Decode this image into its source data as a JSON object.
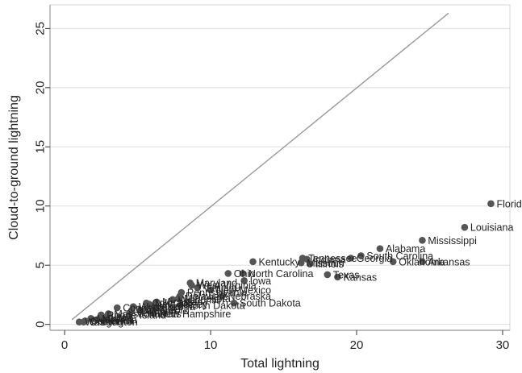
{
  "chart_data": {
    "type": "scatter",
    "title": "",
    "xlabel": "Total lightning",
    "ylabel": "Cloud-to-ground lightning",
    "xlim": [
      -1,
      30.5
    ],
    "ylim": [
      -0.5,
      27
    ],
    "xticks": [
      0,
      10,
      20,
      30
    ],
    "yticks": [
      0,
      5,
      10,
      15,
      20,
      25
    ],
    "grid": "horizontal",
    "reference_line": {
      "x": [
        0.5,
        26.3
      ],
      "y": [
        0.4,
        26.3
      ]
    },
    "colors": {
      "points": "#555555",
      "line": "#999999",
      "grid": "#dddddd",
      "axis": "#333333"
    },
    "points": [
      {
        "label": "Florida",
        "x": 29.2,
        "y": 10.2
      },
      {
        "label": "Louisiana",
        "x": 27.4,
        "y": 8.2
      },
      {
        "label": "Mississippi",
        "x": 24.5,
        "y": 7.1
      },
      {
        "label": "Alabama",
        "x": 21.6,
        "y": 6.4
      },
      {
        "label": "South Carolina",
        "x": 20.3,
        "y": 5.8
      },
      {
        "label": "Georgia",
        "x": 19.6,
        "y": 5.6
      },
      {
        "label": "Oklahoma",
        "x": 22.5,
        "y": 5.3
      },
      {
        "label": "Arkansas",
        "x": 24.5,
        "y": 5.3
      },
      {
        "label": "Tennessee",
        "x": 16.3,
        "y": 5.6
      },
      {
        "label": "Indiana",
        "x": 16.6,
        "y": 5.5
      },
      {
        "label": "Missouri",
        "x": 16.2,
        "y": 5.2
      },
      {
        "label": "Illinois",
        "x": 16.8,
        "y": 5.1
      },
      {
        "label": "Kentucky",
        "x": 12.9,
        "y": 5.3
      },
      {
        "label": "North Carolina",
        "x": 12.2,
        "y": 4.3
      },
      {
        "label": "Ohio",
        "x": 11.2,
        "y": 4.3
      },
      {
        "label": "Iowa",
        "x": 12.3,
        "y": 3.7
      },
      {
        "label": "Texas",
        "x": 18.0,
        "y": 4.2
      },
      {
        "label": "Kansas",
        "x": 18.7,
        "y": 4.0
      },
      {
        "label": "Maryland",
        "x": 8.6,
        "y": 3.5
      },
      {
        "label": "West Virginia",
        "x": 8.7,
        "y": 3.3
      },
      {
        "label": "Virginia",
        "x": 9.1,
        "y": 3.1
      },
      {
        "label": "New Mexico",
        "x": 10.0,
        "y": 2.9
      },
      {
        "label": "Nebraska",
        "x": 10.8,
        "y": 2.4
      },
      {
        "label": "South Dakota",
        "x": 11.6,
        "y": 1.8
      },
      {
        "label": "North Dakota",
        "x": 7.9,
        "y": 1.6
      },
      {
        "label": "Pennsylvania",
        "x": 8.0,
        "y": 2.7
      },
      {
        "label": "Delaware",
        "x": 7.9,
        "y": 2.4
      },
      {
        "label": "Minnesota",
        "x": 7.8,
        "y": 2.2
      },
      {
        "label": "Wisconsin",
        "x": 7.4,
        "y": 2.1
      },
      {
        "label": "Michigan",
        "x": 6.3,
        "y": 1.9
      },
      {
        "label": "Colorado",
        "x": 5.6,
        "y": 1.8
      },
      {
        "label": "Arizona",
        "x": 6.2,
        "y": 1.5
      },
      {
        "label": "New Jersey",
        "x": 5.8,
        "y": 1.7
      },
      {
        "label": "Wyoming",
        "x": 4.7,
        "y": 1.5
      },
      {
        "label": "Montana",
        "x": 4.6,
        "y": 1.2
      },
      {
        "label": "Connecticut",
        "x": 3.6,
        "y": 1.4
      },
      {
        "label": "Vermont",
        "x": 4.5,
        "y": 1.0
      },
      {
        "label": "New York",
        "x": 5.2,
        "y": 1.2
      },
      {
        "label": "New Hampshire",
        "x": 6.1,
        "y": 0.9
      },
      {
        "label": "Massachusetts",
        "x": 3.0,
        "y": 0.9
      },
      {
        "label": "Rhode Island",
        "x": 2.5,
        "y": 0.8
      },
      {
        "label": "Utah",
        "x": 2.8,
        "y": 0.6
      },
      {
        "label": "Idaho",
        "x": 2.6,
        "y": 0.5
      },
      {
        "label": "Nevada",
        "x": 2.2,
        "y": 0.4
      },
      {
        "label": "Maine",
        "x": 1.8,
        "y": 0.5
      },
      {
        "label": "California",
        "x": 1.4,
        "y": 0.3
      },
      {
        "label": "Oregon",
        "x": 1.3,
        "y": 0.2
      },
      {
        "label": "Washington",
        "x": 1.0,
        "y": 0.2
      }
    ]
  }
}
